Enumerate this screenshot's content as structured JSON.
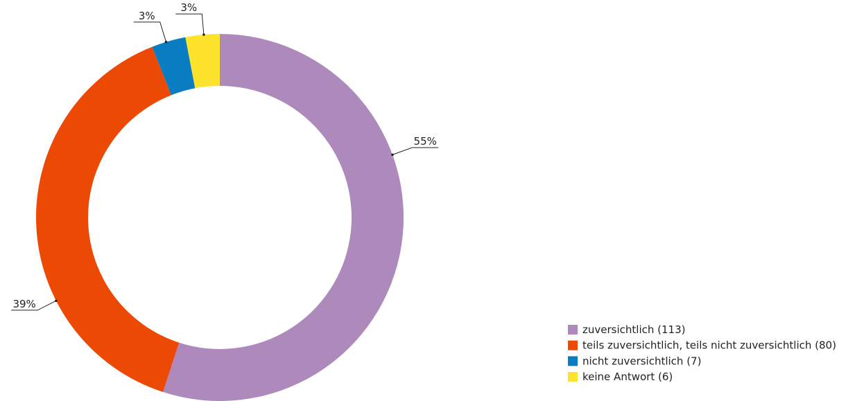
{
  "chart_data": {
    "type": "donut",
    "categories": [
      "zuversichtlich (113)",
      "teils zuversichtlich, teils nicht zuversichtlich (80)",
      "nicht zuversichtlich (7)",
      "keine Antwort (6)"
    ],
    "values": [
      55,
      39,
      3,
      3
    ],
    "value_labels": [
      "55%",
      "39%",
      "3%",
      "3%"
    ],
    "colors": [
      "#ad89bc",
      "#ec4a04",
      "#0a7cc1",
      "#fde32c"
    ]
  }
}
